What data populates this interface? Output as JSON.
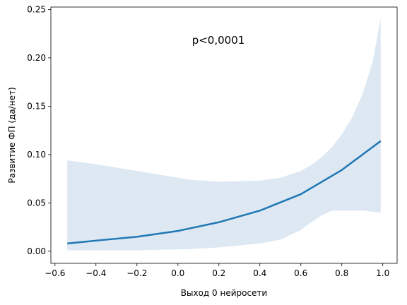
{
  "chart_data": {
    "type": "line",
    "title": "",
    "xlabel": "Выход 0 нейросети",
    "ylabel": "Развитие ФП (да/нет)",
    "xlim": [
      -0.62,
      1.07
    ],
    "ylim": [
      -0.0125,
      0.2525
    ],
    "xticks": [
      -0.6,
      -0.4,
      -0.2,
      0.0,
      0.2,
      0.4,
      0.6,
      0.8,
      1.0
    ],
    "xtick_labels": [
      "−0.6",
      "−0.4",
      "−0.2",
      "0.0",
      "0.2",
      "0.4",
      "0.6",
      "0.8",
      "1.0"
    ],
    "yticks": [
      0.0,
      0.05,
      0.1,
      0.15,
      0.2,
      0.25
    ],
    "ytick_labels": [
      "0.00",
      "0.05",
      "0.10",
      "0.15",
      "0.20",
      "0.25"
    ],
    "annotation": "p<0,0001",
    "grid": false,
    "colors": {
      "line": "#1f77b4",
      "band": "#dde8f3"
    },
    "series": [
      {
        "x": [
          -0.54,
          -0.4,
          -0.2,
          0.0,
          0.2,
          0.4,
          0.6,
          0.8,
          0.99
        ],
        "y": [
          0.008,
          0.011,
          0.015,
          0.021,
          0.03,
          0.042,
          0.059,
          0.084,
          0.114
        ]
      }
    ],
    "confidence_band": {
      "x": [
        -0.54,
        -0.4,
        -0.2,
        0.0,
        0.05,
        0.2,
        0.4,
        0.5,
        0.6,
        0.65,
        0.7,
        0.75,
        0.8,
        0.85,
        0.9,
        0.95,
        0.99
      ],
      "upper": [
        0.094,
        0.09,
        0.083,
        0.076,
        0.074,
        0.072,
        0.073,
        0.076,
        0.083,
        0.089,
        0.097,
        0.107,
        0.121,
        0.138,
        0.162,
        0.195,
        0.241
      ],
      "lower": [
        0.001,
        0.001,
        0.001,
        0.002,
        0.002,
        0.004,
        0.008,
        0.012,
        0.022,
        0.03,
        0.037,
        0.042,
        0.042,
        0.042,
        0.042,
        0.041,
        0.04
      ]
    }
  }
}
